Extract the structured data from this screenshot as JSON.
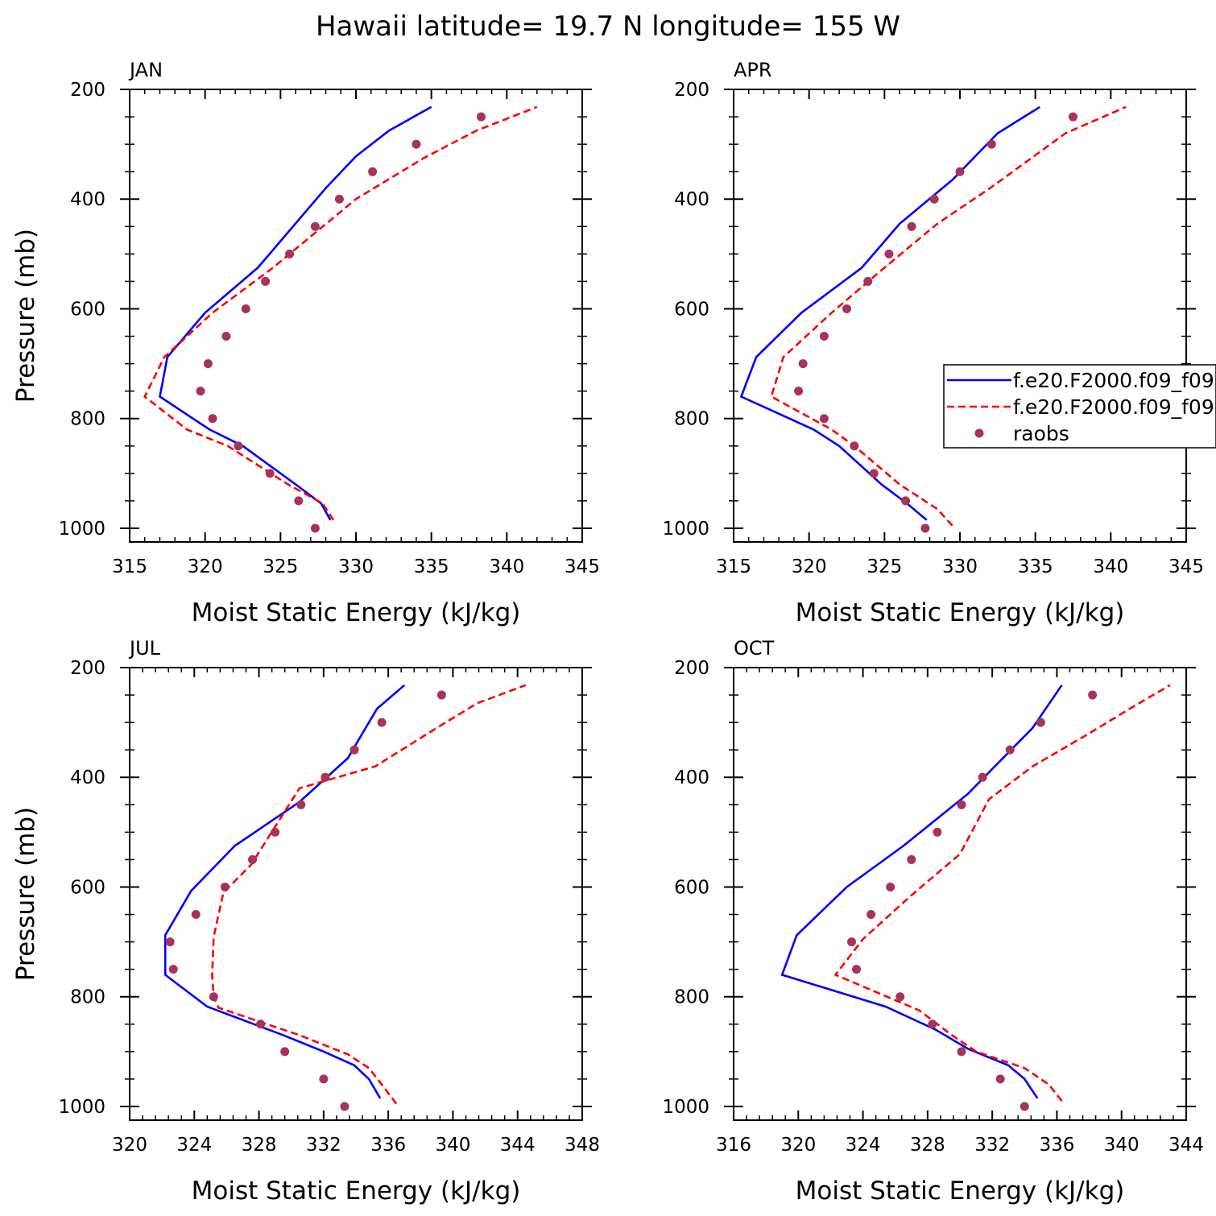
{
  "title": "Hawaii  latitude= 19.7 N longitude= 155 W",
  "legend": {
    "entries": [
      {
        "label": "f.e20.F2000.f09_f09",
        "color": "#0000ff",
        "style": "solid"
      },
      {
        "label": "f.e20.F2000.f09_f09",
        "color": "#ff0000",
        "style": "dashed"
      },
      {
        "label": "raobs",
        "color": "#a8325a",
        "style": "marker"
      }
    ]
  },
  "chart_data": [
    {
      "type": "line",
      "panel": "JAN",
      "xlabel": "Moist Static Energy (kJ/kg)",
      "ylabel": "Pressure (mb)",
      "xlim": [
        315,
        345
      ],
      "xticks": [
        315,
        320,
        325,
        330,
        335,
        340,
        345
      ],
      "ylim": [
        1025,
        200
      ],
      "yticks": [
        200,
        400,
        600,
        800,
        1000
      ],
      "series": [
        {
          "name": "f.e20.F2000.f09_f09",
          "x": [
            328.3,
            327.7,
            326.0,
            322.5,
            320.3,
            317.0,
            317.5,
            320.0,
            323.5,
            328.0,
            330.0,
            332.2,
            335.0
          ],
          "y": [
            985,
            955,
            920,
            850,
            820,
            760,
            688,
            607,
            525,
            380,
            322,
            275,
            232
          ]
        },
        {
          "name": "f.e20.F2000.f09_f09",
          "x": [
            328.5,
            327.8,
            325.5,
            321.5,
            318.8,
            316.0,
            317.3,
            320.5,
            324.5,
            330.0,
            334.5,
            338.0,
            342.0
          ],
          "y": [
            985,
            955,
            920,
            850,
            820,
            760,
            688,
            607,
            525,
            400,
            325,
            275,
            232
          ]
        },
        {
          "name": "raobs",
          "x": [
            327.3,
            326.2,
            324.3,
            322.2,
            320.5,
            319.7,
            320.2,
            321.4,
            322.7,
            324.0,
            325.6,
            327.3,
            328.9,
            331.1,
            334.0,
            338.3
          ],
          "y": [
            1000,
            950,
            900,
            850,
            800,
            750,
            700,
            650,
            600,
            550,
            500,
            450,
            400,
            350,
            300,
            250
          ]
        }
      ]
    },
    {
      "type": "line",
      "panel": "APR",
      "xlabel": "Moist Static Energy (kJ/kg)",
      "ylabel": "",
      "xlim": [
        315,
        345
      ],
      "xticks": [
        315,
        320,
        325,
        330,
        335,
        340,
        345
      ],
      "ylim": [
        1025,
        200
      ],
      "yticks": [
        200,
        400,
        600,
        800,
        1000
      ],
      "series": [
        {
          "name": "f.e20.F2000.f09_f09",
          "x": [
            327.8,
            326.5,
            324.8,
            322.0,
            320.3,
            315.5,
            316.5,
            319.5,
            323.5,
            326.0,
            329.5,
            332.5,
            335.3
          ],
          "y": [
            985,
            955,
            920,
            850,
            820,
            760,
            688,
            607,
            525,
            445,
            365,
            280,
            232
          ]
        },
        {
          "name": "f.e20.F2000.f09_f09",
          "x": [
            329.5,
            328.5,
            326.0,
            323.0,
            321.5,
            317.5,
            318.3,
            321.5,
            325.0,
            328.5,
            332.0,
            337.0,
            341.0
          ],
          "y": [
            995,
            965,
            920,
            850,
            820,
            760,
            688,
            607,
            525,
            445,
            380,
            280,
            232
          ]
        },
        {
          "name": "raobs",
          "x": [
            327.7,
            326.4,
            324.3,
            323.0,
            321.0,
            319.3,
            319.6,
            321.0,
            322.5,
            323.9,
            325.3,
            326.8,
            328.3,
            330.0,
            332.1,
            337.5
          ],
          "y": [
            1000,
            950,
            900,
            850,
            800,
            750,
            700,
            650,
            600,
            550,
            500,
            450,
            400,
            350,
            300,
            250
          ]
        }
      ]
    },
    {
      "type": "line",
      "panel": "JUL",
      "xlabel": "Moist Static Energy (kJ/kg)",
      "ylabel": "Pressure (mb)",
      "xlim": [
        320,
        348
      ],
      "xticks": [
        320,
        324,
        328,
        332,
        336,
        340,
        344,
        348
      ],
      "ylim": [
        1025,
        200
      ],
      "yticks": [
        200,
        400,
        600,
        800,
        1000
      ],
      "series": [
        {
          "name": "f.e20.F2000.f09_f09",
          "x": [
            335.5,
            334.8,
            333.9,
            332.0,
            329.5,
            324.8,
            322.2,
            322.2,
            323.8,
            326.5,
            330.5,
            333.5,
            335.3,
            337.0
          ],
          "y": [
            985,
            950,
            925,
            900,
            870,
            818,
            760,
            688,
            607,
            525,
            445,
            365,
            275,
            232
          ]
        },
        {
          "name": "f.e20.F2000.f09_f09",
          "x": [
            336.5,
            335.6,
            334.8,
            333.5,
            330.5,
            325.5,
            325.2,
            325.1,
            325.2,
            325.8,
            327.5,
            330.5,
            335.2,
            339.0,
            341.5,
            344.5
          ],
          "y": [
            995,
            960,
            930,
            905,
            870,
            820,
            800,
            760,
            690,
            610,
            560,
            420,
            380,
            310,
            265,
            232
          ]
        },
        {
          "name": "raobs",
          "x": [
            333.3,
            332.0,
            329.6,
            328.1,
            325.2,
            322.7,
            322.5,
            324.1,
            325.9,
            327.6,
            329.0,
            330.6,
            332.1,
            333.9,
            335.6,
            339.3
          ],
          "y": [
            1000,
            950,
            900,
            850,
            800,
            750,
            700,
            650,
            600,
            550,
            500,
            450,
            400,
            350,
            300,
            250
          ]
        }
      ]
    },
    {
      "type": "line",
      "panel": "OCT",
      "xlabel": "Moist Static Energy (kJ/kg)",
      "ylabel": "",
      "xlim": [
        316,
        344
      ],
      "xticks": [
        316,
        320,
        324,
        328,
        332,
        336,
        340,
        344
      ],
      "ylim": [
        1025,
        200
      ],
      "yticks": [
        200,
        400,
        600,
        800,
        1000
      ],
      "series": [
        {
          "name": "f.e20.F2000.f09_f09",
          "x": [
            334.8,
            334.0,
            333.0,
            330.5,
            328.5,
            325.4,
            319.0,
            319.9,
            323.0,
            326.5,
            330.5,
            334.5,
            336.3
          ],
          "y": [
            985,
            950,
            925,
            895,
            860,
            818,
            760,
            688,
            600,
            525,
            430,
            310,
            232
          ]
        },
        {
          "name": "f.e20.F2000.f09_f09",
          "x": [
            336.3,
            335.5,
            334.0,
            331.0,
            329.5,
            327.5,
            322.3,
            324.0,
            327.0,
            330.0,
            331.8,
            334.5,
            338.0,
            340.5,
            343.0
          ],
          "y": [
            990,
            960,
            930,
            900,
            870,
            825,
            760,
            695,
            615,
            540,
            440,
            380,
            320,
            275,
            232
          ]
        },
        {
          "name": "raobs",
          "x": [
            334.0,
            332.5,
            330.1,
            328.3,
            326.3,
            323.6,
            323.3,
            324.5,
            325.7,
            327.0,
            328.6,
            330.1,
            331.4,
            333.1,
            335.0,
            338.2
          ],
          "y": [
            1000,
            950,
            900,
            850,
            800,
            750,
            700,
            650,
            600,
            550,
            500,
            450,
            400,
            350,
            300,
            250
          ]
        }
      ]
    }
  ]
}
